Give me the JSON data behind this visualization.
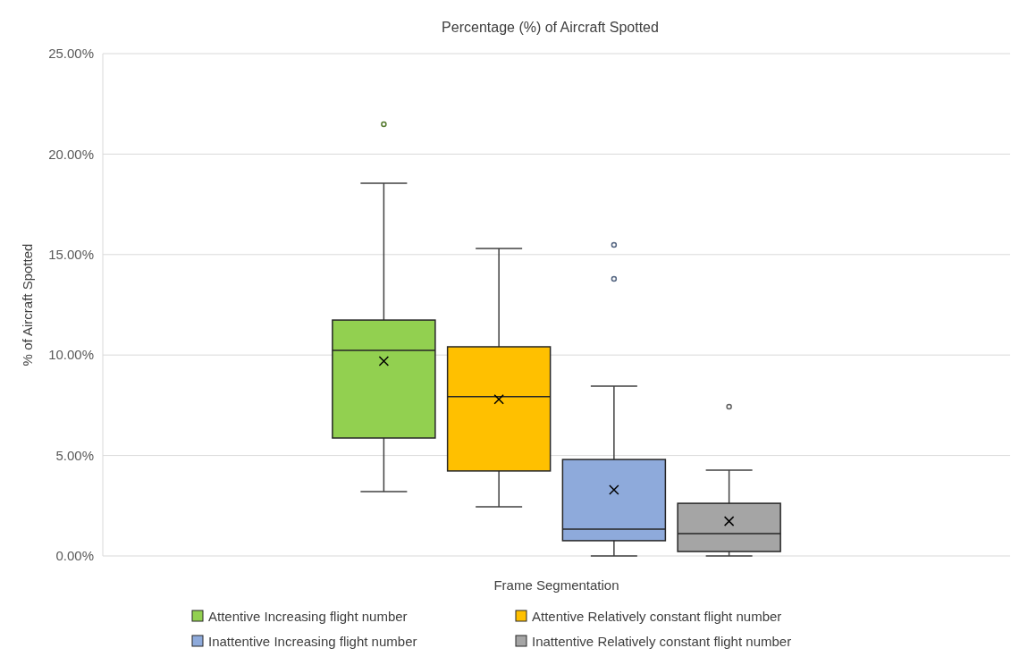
{
  "chart_data": {
    "type": "box",
    "title": "Percentage (%) of Aircraft Spotted",
    "xlabel": "Frame Segmentation",
    "ylabel": "% of Aircraft Spotted",
    "categories": [
      null
    ],
    "ylim": [
      0,
      25
    ],
    "yticks": [
      {
        "value": 0,
        "label": "0.00%"
      },
      {
        "value": 5,
        "label": "5.00%"
      },
      {
        "value": 10,
        "label": "10.00%"
      },
      {
        "value": 15,
        "label": "15.00%"
      },
      {
        "value": 20,
        "label": "20.00%"
      },
      {
        "value": 25,
        "label": "25.00%"
      }
    ],
    "grid": "y",
    "legend": "bottom",
    "series": [
      {
        "name": "Attentive Increasing flight number",
        "color": "#92d050",
        "boxes": [
          {
            "low": 3.2,
            "q1": 5.87,
            "median": 10.23,
            "q3": 11.74,
            "high": 18.55,
            "mean": 9.7,
            "outliers": [
              21.49
            ]
          }
        ]
      },
      {
        "name": "Attentive Relatively constant flight number",
        "color": "#ffc000",
        "boxes": [
          {
            "low": 2.45,
            "q1": 4.23,
            "median": 7.93,
            "q3": 10.41,
            "high": 15.3,
            "mean": 7.8
          }
        ]
      },
      {
        "name": "Inattentive Increasing flight number",
        "color": "#8eaadb",
        "boxes": [
          {
            "low": 0,
            "q1": 0.76,
            "median": 1.33,
            "q3": 4.8,
            "high": 8.45,
            "mean": 3.29,
            "outliers": [
              15.48,
              13.79
            ]
          }
        ]
      },
      {
        "name": "Inattentive Relatively constant flight number",
        "color": "#a5a5a5",
        "boxes": [
          {
            "low": 0,
            "q1": 0.22,
            "median": 1.11,
            "q3": 2.62,
            "high": 4.27,
            "mean": 1.73,
            "outliers": [
              7.43
            ]
          }
        ]
      }
    ]
  }
}
